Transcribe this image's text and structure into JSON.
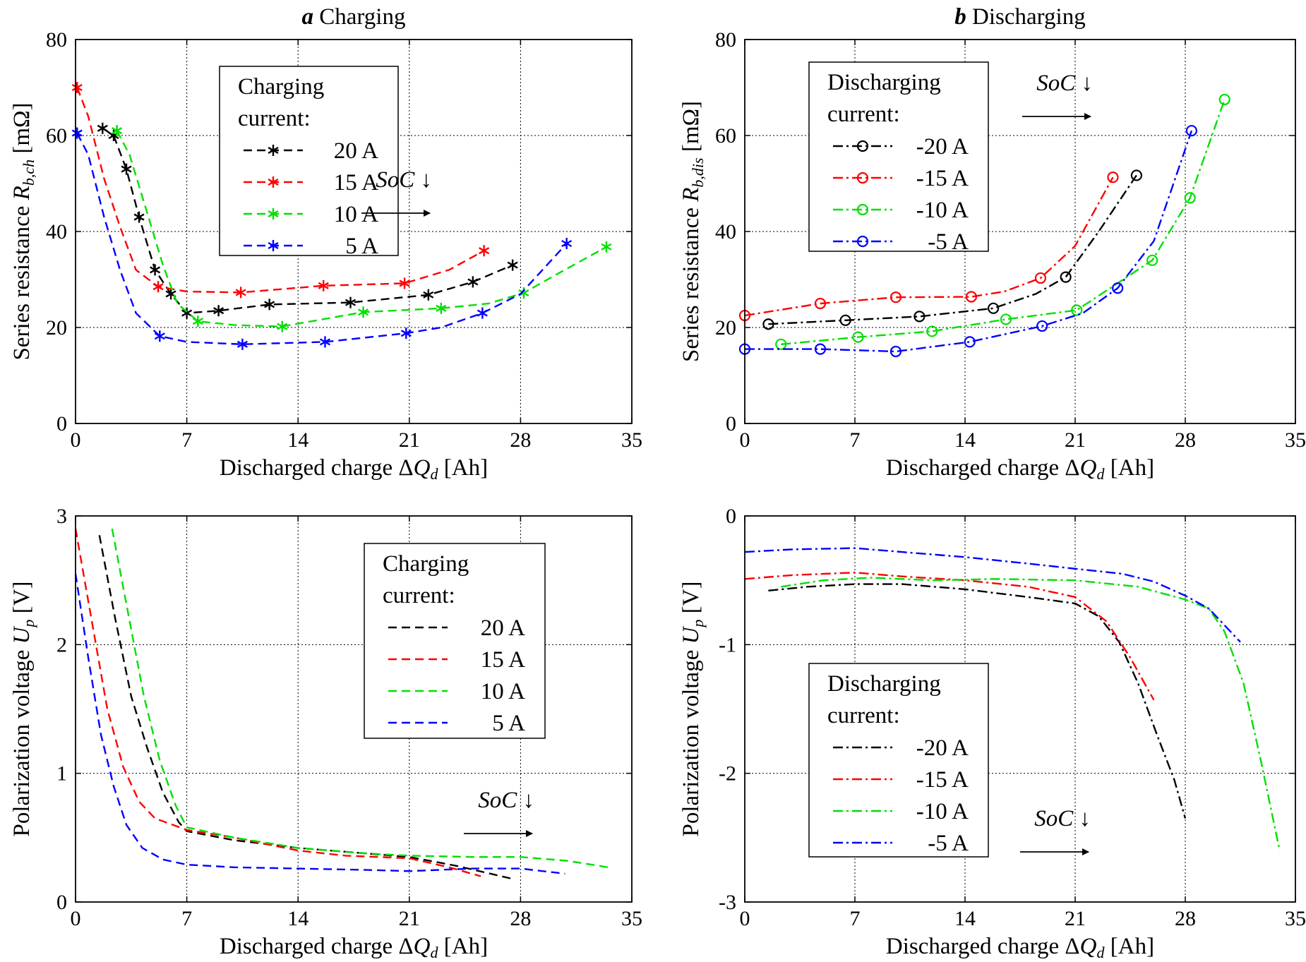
{
  "colors": {
    "black": "#000000",
    "red": "#ff0000",
    "green": "#00e000",
    "blue": "#0000ff"
  },
  "chart_data": [
    {
      "id": "a",
      "type": "line",
      "title_letter": "a",
      "title": "Charging",
      "xlabel": "Discharged charge ΔQ_d [Ah]",
      "ylabel": "Series resistance R_b,ch [mΩ]",
      "xlim": [
        0,
        35
      ],
      "ylim": [
        0,
        80
      ],
      "xticks": [
        0,
        7,
        14,
        21,
        28,
        35
      ],
      "yticks": [
        0,
        20,
        40,
        60,
        80
      ],
      "grid": true,
      "line_style": "dashed",
      "marker": "asterisk",
      "legend": {
        "placement": "top-center",
        "title_lines": [
          "Charging",
          "current:"
        ]
      },
      "annotation": {
        "text": "SoC",
        "arrow": "↓"
      },
      "series": [
        {
          "name": "20 A",
          "color": "#000000",
          "x": [
            1.7,
            2.4,
            3.2,
            4.0,
            5.0,
            6.0,
            7.0,
            9.0,
            12.2,
            17.3,
            22.2,
            25.0,
            27.5
          ],
          "y": [
            61.5,
            60.0,
            53.0,
            43.0,
            32.0,
            27.0,
            23.0,
            23.5,
            24.8,
            25.2,
            26.8,
            29.5,
            33.0
          ]
        },
        {
          "name": "15 A",
          "color": "#ff0000",
          "x": [
            0.1,
            0.8,
            1.8,
            2.8,
            3.8,
            5.2,
            7.0,
            10.4,
            15.6,
            20.7,
            23.5,
            25.7
          ],
          "y": [
            70.0,
            64.0,
            51.0,
            41.0,
            32.0,
            28.5,
            27.5,
            27.3,
            28.7,
            29.2,
            32.0,
            36.0
          ],
          "markers": [
            0,
            5,
            7,
            8,
            9,
            11
          ]
        },
        {
          "name": "10 A",
          "color": "#00e000",
          "x": [
            2.6,
            3.4,
            4.5,
            5.5,
            6.4,
            7.7,
            10.0,
            13.0,
            18.1,
            23.0,
            26.0,
            28.2,
            30.5,
            33.4
          ],
          "y": [
            61.0,
            56.0,
            44.0,
            33.0,
            25.0,
            21.3,
            20.5,
            20.2,
            23.2,
            24.0,
            25.0,
            27.2,
            31.5,
            36.8
          ],
          "markers": [
            0,
            5,
            7,
            8,
            9,
            11,
            13
          ]
        },
        {
          "name": "5 A",
          "color": "#0000ff",
          "x": [
            0.1,
            0.8,
            1.8,
            2.8,
            3.8,
            5.3,
            7.0,
            10.5,
            15.7,
            20.8,
            23.0,
            25.6,
            28.0,
            30.9
          ],
          "y": [
            60.5,
            56.0,
            43.0,
            32.0,
            23.0,
            18.2,
            17.0,
            16.5,
            17.0,
            18.8,
            20.0,
            23.0,
            27.0,
            37.5
          ],
          "markers": [
            0,
            5,
            7,
            8,
            9,
            11,
            13
          ]
        }
      ]
    },
    {
      "id": "b",
      "type": "line",
      "title_letter": "b",
      "title": "Discharging",
      "xlabel": "Discharged charge ΔQ_d [Ah]",
      "ylabel": "Series resistance R_b,dis [mΩ]",
      "xlim": [
        0,
        35
      ],
      "ylim": [
        0,
        80
      ],
      "xticks": [
        0,
        7,
        14,
        21,
        28,
        35
      ],
      "yticks": [
        0,
        20,
        40,
        60,
        80
      ],
      "grid": true,
      "line_style": "dashdot",
      "marker": "circle",
      "legend": {
        "placement": "top-left",
        "title_lines": [
          "Discharging",
          "current:"
        ]
      },
      "annotation": {
        "text": "SoC",
        "arrow": "↓"
      },
      "series": [
        {
          "name": "-20 A",
          "color": "#000000",
          "x": [
            1.5,
            6.4,
            11.1,
            15.8,
            18.5,
            20.4,
            22.5,
            24.9
          ],
          "y": [
            20.7,
            21.5,
            22.3,
            24.0,
            27.0,
            30.5,
            40.0,
            51.7
          ],
          "markers": [
            0,
            1,
            2,
            3,
            5,
            7
          ]
        },
        {
          "name": "-15 A",
          "color": "#ff0000",
          "x": [
            0.0,
            4.8,
            9.6,
            14.4,
            16.5,
            18.8,
            21.0,
            23.4
          ],
          "y": [
            22.5,
            25.0,
            26.3,
            26.4,
            27.5,
            30.3,
            37.0,
            51.3
          ],
          "markers": [
            0,
            1,
            2,
            3,
            5,
            7
          ]
        },
        {
          "name": "-10 A",
          "color": "#00e000",
          "x": [
            2.3,
            7.2,
            11.9,
            16.6,
            21.1,
            25.9,
            28.3,
            30.5
          ],
          "y": [
            16.5,
            18.0,
            19.2,
            21.7,
            23.6,
            34.0,
            47.0,
            67.5
          ]
        },
        {
          "name": "-5 A",
          "color": "#0000ff",
          "x": [
            0.0,
            4.8,
            9.6,
            14.3,
            18.9,
            21.5,
            23.7,
            26.0,
            28.4
          ],
          "y": [
            15.5,
            15.5,
            15.0,
            17.0,
            20.3,
            23.0,
            28.2,
            38.0,
            61.0
          ],
          "markers": [
            0,
            1,
            2,
            3,
            4,
            6,
            8
          ]
        }
      ]
    },
    {
      "id": "c",
      "type": "line",
      "title": "",
      "xlabel": "Discharged charge ΔQ_d [Ah]",
      "ylabel": "Polarization voltage U_p [V]",
      "xlim": [
        0,
        35
      ],
      "ylim": [
        0,
        3
      ],
      "xticks": [
        0,
        7,
        14,
        21,
        28,
        35
      ],
      "yticks": [
        0,
        1,
        2,
        3
      ],
      "grid": true,
      "line_style": "dashed",
      "marker": "none",
      "legend": {
        "placement": "top-right",
        "title_lines": [
          "Charging",
          "current:"
        ]
      },
      "annotation": {
        "text": "SoC",
        "arrow": "↓"
      },
      "series": [
        {
          "name": "20 A",
          "color": "#000000",
          "x": [
            1.5,
            2.5,
            3.5,
            4.5,
            5.5,
            6.5,
            7.0,
            10.0,
            14.0,
            18.0,
            21.0,
            24.0,
            27.5
          ],
          "y": [
            2.85,
            2.2,
            1.6,
            1.2,
            0.85,
            0.62,
            0.55,
            0.48,
            0.42,
            0.38,
            0.35,
            0.28,
            0.18
          ]
        },
        {
          "name": "15 A",
          "color": "#ff0000",
          "x": [
            0.0,
            1.0,
            2.0,
            3.0,
            4.0,
            5.0,
            7.0,
            10.0,
            14.0,
            17.0,
            21.0,
            23.5,
            25.5
          ],
          "y": [
            2.9,
            2.2,
            1.5,
            1.05,
            0.78,
            0.65,
            0.56,
            0.5,
            0.4,
            0.36,
            0.34,
            0.27,
            0.2
          ]
        },
        {
          "name": "10 A",
          "color": "#00e000",
          "x": [
            2.3,
            3.3,
            4.3,
            5.3,
            6.3,
            7.0,
            10.0,
            14.0,
            18.0,
            21.0,
            25.0,
            28.0,
            31.0,
            33.5
          ],
          "y": [
            2.9,
            2.25,
            1.6,
            1.1,
            0.75,
            0.58,
            0.5,
            0.42,
            0.38,
            0.36,
            0.35,
            0.35,
            0.32,
            0.27
          ]
        },
        {
          "name": "5 A",
          "color": "#0000ff",
          "x": [
            0.0,
            0.8,
            1.6,
            2.4,
            3.2,
            4.2,
            5.5,
            7.0,
            10.0,
            14.0,
            18.0,
            21.0,
            25.0,
            28.0,
            30.8
          ],
          "y": [
            2.55,
            1.9,
            1.3,
            0.9,
            0.6,
            0.42,
            0.33,
            0.29,
            0.27,
            0.26,
            0.25,
            0.24,
            0.26,
            0.26,
            0.22
          ]
        }
      ]
    },
    {
      "id": "d",
      "type": "line",
      "title": "",
      "xlabel": "Discharged charge ΔQ_d [Ah]",
      "ylabel": "Polarization voltage U_p [V]",
      "xlim": [
        0,
        35
      ],
      "ylim": [
        -3,
        0
      ],
      "xticks": [
        0,
        7,
        14,
        21,
        28,
        35
      ],
      "yticks": [
        -3,
        -2,
        -1,
        0
      ],
      "grid": true,
      "line_style": "dashdot",
      "marker": "none",
      "legend": {
        "placement": "bottom-left",
        "title_lines": [
          "Discharging",
          "current:"
        ]
      },
      "annotation": {
        "text": "SoC",
        "arrow": "↓"
      },
      "series": [
        {
          "name": "-20 A",
          "color": "#000000",
          "x": [
            1.5,
            4.0,
            7.0,
            10.0,
            14.0,
            18.0,
            21.0,
            22.5,
            23.8,
            25.0,
            26.2,
            27.3,
            28.0
          ],
          "y": [
            -0.58,
            -0.55,
            -0.53,
            -0.53,
            -0.57,
            -0.63,
            -0.68,
            -0.78,
            -0.98,
            -1.3,
            -1.7,
            -2.05,
            -2.35
          ]
        },
        {
          "name": "-15 A",
          "color": "#ff0000",
          "x": [
            0.0,
            3.0,
            7.0,
            10.0,
            14.0,
            18.0,
            21.0,
            23.0,
            24.5,
            26.0
          ],
          "y": [
            -0.49,
            -0.46,
            -0.44,
            -0.47,
            -0.5,
            -0.55,
            -0.63,
            -0.82,
            -1.1,
            -1.43
          ]
        },
        {
          "name": "-10 A",
          "color": "#00e000",
          "x": [
            2.3,
            5.0,
            8.0,
            12.0,
            16.0,
            21.0,
            25.0,
            28.0,
            29.5,
            30.5,
            31.7,
            32.8,
            34.0
          ],
          "y": [
            -0.55,
            -0.5,
            -0.48,
            -0.5,
            -0.49,
            -0.5,
            -0.55,
            -0.65,
            -0.72,
            -0.9,
            -1.3,
            -1.9,
            -2.6
          ]
        },
        {
          "name": "-5 A",
          "color": "#0000ff",
          "x": [
            0.0,
            3.0,
            7.0,
            10.0,
            14.0,
            18.0,
            21.0,
            24.0,
            26.0,
            28.0,
            29.5,
            31.5
          ],
          "y": [
            -0.28,
            -0.26,
            -0.25,
            -0.28,
            -0.32,
            -0.37,
            -0.41,
            -0.45,
            -0.51,
            -0.62,
            -0.72,
            -0.98
          ]
        }
      ]
    }
  ]
}
